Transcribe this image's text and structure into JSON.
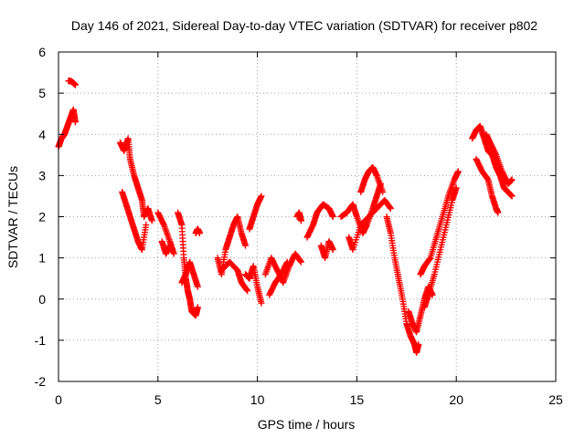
{
  "chart_data": {
    "type": "scatter",
    "title": "Day 146 of 2021, Sidereal Day-to-day VTEC variation (SDTVAR) for receiver p802",
    "xlabel": "GPS time / hours",
    "ylabel": "SDTVAR / TECUs",
    "xlim": [
      0,
      25
    ],
    "ylim": [
      -2,
      6
    ],
    "x_ticks": [
      0,
      5,
      10,
      15,
      20,
      25
    ],
    "y_ticks": [
      -2,
      -1,
      0,
      1,
      2,
      3,
      4,
      5,
      6
    ],
    "grid": true,
    "marker": "+",
    "series_color": "#ff0000",
    "series": [
      {
        "name": "SDTVAR",
        "segments": [
          [
            [
              0.0,
              3.7
            ],
            [
              0.15,
              3.9
            ],
            [
              0.3,
              4.0
            ],
            [
              0.45,
              4.2
            ],
            [
              0.6,
              4.4
            ],
            [
              0.75,
              4.6
            ],
            [
              0.85,
              4.3
            ]
          ],
          [
            [
              0.5,
              5.3
            ],
            [
              0.6,
              5.3
            ],
            [
              0.75,
              5.25
            ],
            [
              0.85,
              5.2
            ]
          ],
          [
            [
              3.1,
              3.8
            ],
            [
              3.3,
              3.6
            ],
            [
              3.5,
              3.9
            ],
            [
              3.6,
              3.4
            ],
            [
              3.8,
              3.0
            ],
            [
              4.0,
              2.7
            ],
            [
              4.2,
              2.4
            ],
            [
              4.3,
              2.0
            ],
            [
              4.5,
              2.2
            ],
            [
              4.7,
              1.9
            ]
          ],
          [
            [
              3.2,
              2.6
            ],
            [
              3.4,
              2.3
            ],
            [
              3.6,
              2.0
            ],
            [
              3.8,
              1.7
            ],
            [
              4.0,
              1.4
            ],
            [
              4.2,
              1.2
            ],
            [
              4.4,
              1.8
            ]
          ],
          [
            [
              5.0,
              2.1
            ],
            [
              5.3,
              1.8
            ],
            [
              5.6,
              1.4
            ],
            [
              5.8,
              1.1
            ]
          ],
          [
            [
              5.2,
              1.4
            ],
            [
              5.4,
              1.1
            ],
            [
              5.6,
              1.3
            ]
          ],
          [
            [
              6.0,
              2.1
            ],
            [
              6.2,
              1.8
            ],
            [
              6.3,
              1.0
            ],
            [
              6.4,
              0.5
            ],
            [
              6.5,
              0.2
            ],
            [
              6.6,
              0.0
            ],
            [
              6.7,
              -0.3
            ],
            [
              6.9,
              -0.4
            ],
            [
              7.0,
              -0.2
            ]
          ],
          [
            [
              6.2,
              0.4
            ],
            [
              6.4,
              0.6
            ],
            [
              6.6,
              0.9
            ],
            [
              6.8,
              0.6
            ],
            [
              7.0,
              0.3
            ]
          ],
          [
            [
              6.9,
              1.6
            ],
            [
              7.0,
              1.7
            ],
            [
              7.1,
              1.6
            ]
          ],
          [
            [
              8.0,
              1.0
            ],
            [
              8.2,
              0.6
            ],
            [
              8.4,
              1.2
            ],
            [
              8.6,
              1.5
            ],
            [
              8.8,
              1.8
            ],
            [
              9.0,
              2.0
            ],
            [
              9.2,
              1.6
            ],
            [
              9.4,
              1.3
            ]
          ],
          [
            [
              8.2,
              0.7
            ],
            [
              8.6,
              0.9
            ],
            [
              9.0,
              0.7
            ],
            [
              9.2,
              0.4
            ],
            [
              9.5,
              0.2
            ]
          ],
          [
            [
              9.6,
              1.7
            ],
            [
              9.8,
              2.0
            ],
            [
              10.0,
              2.3
            ],
            [
              10.2,
              2.5
            ]
          ],
          [
            [
              9.4,
              0.6
            ],
            [
              9.6,
              0.5
            ],
            [
              9.8,
              0.8
            ],
            [
              10.0,
              0.3
            ],
            [
              10.2,
              -0.1
            ]
          ],
          [
            [
              10.4,
              0.6
            ],
            [
              10.7,
              1.0
            ],
            [
              11.0,
              0.7
            ],
            [
              11.3,
              0.4
            ],
            [
              11.6,
              0.8
            ],
            [
              11.9,
              1.1
            ],
            [
              12.2,
              0.9
            ]
          ],
          [
            [
              10.6,
              0.1
            ],
            [
              10.9,
              0.4
            ],
            [
              11.2,
              0.6
            ],
            [
              11.5,
              0.9
            ]
          ],
          [
            [
              12.0,
              2.0
            ],
            [
              12.1,
              2.1
            ],
            [
              12.2,
              1.9
            ]
          ],
          [
            [
              12.5,
              1.5
            ],
            [
              12.8,
              1.8
            ],
            [
              13.0,
              2.1
            ],
            [
              13.3,
              2.3
            ],
            [
              13.6,
              2.2
            ],
            [
              13.8,
              2.0
            ]
          ],
          [
            [
              13.2,
              1.3
            ],
            [
              13.4,
              1.0
            ],
            [
              13.6,
              1.4
            ],
            [
              13.8,
              1.2
            ]
          ],
          [
            [
              14.2,
              2.0
            ],
            [
              14.5,
              2.1
            ],
            [
              14.8,
              2.3
            ],
            [
              15.0,
              2.0
            ],
            [
              15.3,
              1.6
            ],
            [
              15.5,
              1.8
            ],
            [
              15.8,
              2.2
            ],
            [
              16.0,
              2.5
            ],
            [
              16.2,
              2.8
            ]
          ],
          [
            [
              15.2,
              2.6
            ],
            [
              15.4,
              2.9
            ],
            [
              15.6,
              3.1
            ],
            [
              15.8,
              3.2
            ],
            [
              16.0,
              3.0
            ],
            [
              16.3,
              2.6
            ]
          ],
          [
            [
              14.6,
              1.5
            ],
            [
              14.8,
              1.2
            ],
            [
              15.2,
              1.8
            ],
            [
              15.6,
              2.0
            ],
            [
              16.0,
              2.2
            ],
            [
              16.4,
              2.4
            ],
            [
              16.7,
              2.2
            ]
          ],
          [
            [
              16.5,
              2.0
            ],
            [
              16.7,
              1.6
            ],
            [
              16.9,
              1.0
            ],
            [
              17.1,
              0.5
            ],
            [
              17.3,
              0.0
            ],
            [
              17.5,
              -0.6
            ],
            [
              17.7,
              -0.9
            ],
            [
              17.9,
              -1.1
            ],
            [
              18.0,
              -1.3
            ],
            [
              18.1,
              -1.1
            ]
          ],
          [
            [
              17.6,
              -0.3
            ],
            [
              17.8,
              -0.6
            ],
            [
              18.0,
              -0.8
            ],
            [
              18.2,
              -0.4
            ],
            [
              18.4,
              0.0
            ],
            [
              18.6,
              0.3
            ],
            [
              18.8,
              0.1
            ]
          ],
          [
            [
              18.2,
              0.6
            ],
            [
              18.4,
              0.8
            ],
            [
              18.7,
              1.0
            ],
            [
              19.0,
              1.5
            ],
            [
              19.3,
              2.0
            ],
            [
              19.6,
              2.5
            ],
            [
              19.9,
              2.9
            ],
            [
              20.1,
              3.1
            ]
          ],
          [
            [
              18.4,
              -0.2
            ],
            [
              18.6,
              0.1
            ],
            [
              18.9,
              0.6
            ],
            [
              19.2,
              1.2
            ],
            [
              19.5,
              1.8
            ],
            [
              19.8,
              2.4
            ],
            [
              20.0,
              2.7
            ]
          ],
          [
            [
              20.8,
              3.9
            ],
            [
              21.0,
              4.1
            ],
            [
              21.2,
              4.2
            ],
            [
              21.4,
              3.9
            ],
            [
              21.6,
              3.6
            ],
            [
              21.8,
              3.5
            ],
            [
              22.0,
              3.2
            ],
            [
              22.2,
              3.0
            ],
            [
              22.4,
              2.7
            ],
            [
              22.6,
              2.6
            ],
            [
              22.8,
              2.5
            ]
          ],
          [
            [
              21.0,
              3.4
            ],
            [
              21.3,
              3.1
            ],
            [
              21.6,
              2.9
            ],
            [
              21.8,
              2.5
            ],
            [
              22.0,
              2.2
            ],
            [
              22.1,
              2.1
            ]
          ],
          [
            [
              21.5,
              4.0
            ],
            [
              21.7,
              3.8
            ],
            [
              22.0,
              3.5
            ],
            [
              22.3,
              3.1
            ],
            [
              22.6,
              2.8
            ],
            [
              22.8,
              2.9
            ]
          ]
        ]
      }
    ]
  }
}
